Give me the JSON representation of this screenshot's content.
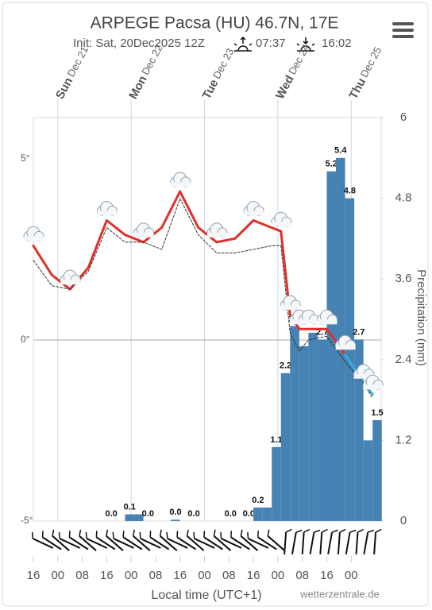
{
  "chart_data": {
    "type": "meteogram",
    "title": "ARPEGE Pacsa (HU) 46.7N, 17E",
    "subtitle": "Init: Sat, 20Dec2025 12Z",
    "sunrise": "07:37",
    "sunset": "16:02",
    "xlabel": "Local time (UTC+1)",
    "y2label": "Precipitation (mm)",
    "credit": "wetterzentrale.de",
    "xlim": [
      0,
      113.8
    ],
    "xticks": [
      {
        "value": 0,
        "label": "16"
      },
      {
        "value": 8,
        "label": "00"
      },
      {
        "value": 16,
        "label": "08"
      },
      {
        "value": 24,
        "label": "16"
      },
      {
        "value": 32,
        "label": "00"
      },
      {
        "value": 40,
        "label": "08"
      },
      {
        "value": 48,
        "label": "16"
      },
      {
        "value": 56,
        "label": "00"
      },
      {
        "value": 64,
        "label": "08"
      },
      {
        "value": 72,
        "label": "16"
      },
      {
        "value": 80,
        "label": "00"
      },
      {
        "value": 88,
        "label": "08"
      },
      {
        "value": 96,
        "label": "16"
      },
      {
        "value": 104,
        "label": "00"
      }
    ],
    "day_labels": [
      {
        "day": "Sun",
        "date": "Dec 21",
        "x": 8
      },
      {
        "day": "Mon",
        "date": "Dec 22",
        "x": 32
      },
      {
        "day": "Tue",
        "date": "Dec 23",
        "x": 56
      },
      {
        "day": "Wed",
        "date": "Dec 24",
        "x": 80
      },
      {
        "day": "Thu",
        "date": "Dec 25",
        "x": 104
      }
    ],
    "ylim": [
      -5,
      6.14
    ],
    "yticks": [
      {
        "value": 5,
        "label": "5°"
      },
      {
        "value": 0,
        "label": "0°"
      },
      {
        "value": -5,
        "label": "-5°"
      }
    ],
    "y2lim": [
      0,
      6
    ],
    "y2ticks": [
      {
        "value": 0,
        "label": "0"
      },
      1.2,
      2.4,
      3.6,
      4.8,
      6
    ],
    "x": [
      0,
      6,
      12,
      18,
      24,
      30,
      36,
      42,
      48,
      54,
      60,
      66,
      72,
      78,
      81,
      84,
      87,
      90,
      96,
      102,
      108,
      111
    ],
    "series": [
      {
        "color": "#e0302a",
        "values": [
          2.6,
          1.8,
          1.4,
          2.0,
          3.3,
          2.9,
          2.7,
          3.1,
          4.1,
          3.1,
          2.7,
          2.8,
          3.3,
          3.1,
          3.0,
          0.7,
          0.3,
          0.3,
          0.3,
          -0.4,
          null,
          null
        ]
      },
      {
        "color": "#3aa8e0",
        "values": [
          null,
          null,
          null,
          null,
          null,
          null,
          null,
          null,
          null,
          null,
          null,
          null,
          null,
          null,
          null,
          null,
          null,
          null,
          null,
          -0.4,
          -1.2,
          -1.5
        ]
      },
      {
        "color": "#333333",
        "dashed": true,
        "values": [
          2.2,
          1.5,
          1.4,
          1.9,
          3.1,
          2.7,
          2.7,
          2.5,
          3.9,
          2.9,
          2.4,
          2.4,
          2.5,
          2.6,
          2.6,
          0.2,
          -0.3,
          0.0,
          0.1,
          -0.6,
          -1.2,
          -1.6
        ]
      }
    ],
    "precipitation": {
      "color": "#4682b4",
      "bin_hours": 3,
      "x": [
        24,
        30,
        33,
        36,
        45,
        51,
        63,
        69,
        72,
        75,
        78,
        81,
        84,
        87,
        90,
        93,
        96,
        99,
        102,
        105,
        108,
        111
      ],
      "values": [
        0,
        0.1,
        0.1,
        0,
        0.02,
        0,
        0,
        0,
        0.2,
        0.2,
        1.1,
        2.2,
        2.9,
        2.6,
        2.8,
        2.7,
        5.2,
        5.4,
        4.8,
        2.7,
        1.2,
        1.5
      ],
      "value_labels": [
        "0.0",
        "0.1",
        null,
        "0.0",
        "0.0",
        "0.0",
        "0.0",
        "0.0",
        "0.2",
        null,
        "1.1",
        "2.2",
        "2.9",
        null,
        null,
        "2.7",
        "5.2",
        "5.4",
        "4.8",
        "2.7",
        null,
        "1.5"
      ]
    }
  }
}
